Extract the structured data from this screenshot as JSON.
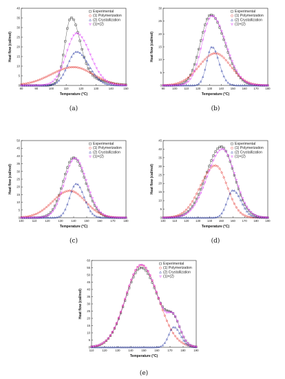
{
  "chart_data": [
    {
      "type": "scatter",
      "caption": "(a)",
      "xlabel": "Temperature (°C)",
      "ylabel": "Heat flow (cal/mol)",
      "xlim": [
        80,
        150
      ],
      "ylim": [
        0,
        40
      ],
      "xticks": [
        80,
        90,
        100,
        110,
        120,
        130,
        140,
        150
      ],
      "yticks": [
        0,
        5,
        10,
        15,
        20,
        25,
        30,
        35,
        40
      ],
      "legend_position": "top-right",
      "series": [
        {
          "name": "Experimental",
          "color": "#333333",
          "marker": "square",
          "peaks": [
            {
              "mu": 113,
              "a": 31,
              "sl": 4,
              "sr": 6
            },
            {
              "mu": 117,
              "a": 5,
              "sl": 6,
              "sr": 14
            }
          ]
        },
        {
          "name": "(1) Polymerization",
          "color": "#e53935",
          "marker": "circle",
          "peaks": [
            {
              "mu": 115,
              "a": 9.5,
              "sl": 15,
              "sr": 13
            }
          ]
        },
        {
          "name": "(2) Crystallization",
          "color": "#3949ab",
          "marker": "triangle",
          "peaks": [
            {
              "mu": 117,
              "a": 17.5,
              "sl": 6,
              "sr": 8
            }
          ]
        },
        {
          "name": "(1)+(2)",
          "color": "#e040fb",
          "marker": "triangle-down",
          "peaks": [
            {
              "mu": 117,
              "a": 27,
              "sl": 7,
              "sr": 9
            }
          ]
        }
      ]
    },
    {
      "type": "scatter",
      "caption": "(b)",
      "xlabel": "Temperature (°C)",
      "ylabel": "Heat flow (cal/mol)",
      "xlim": [
        90,
        180
      ],
      "ylim": [
        0,
        30
      ],
      "xticks": [
        90,
        100,
        110,
        120,
        130,
        140,
        150,
        160,
        170,
        180
      ],
      "yticks": [
        0,
        5,
        10,
        15,
        20,
        25,
        30
      ],
      "legend_position": "top-right",
      "series": [
        {
          "name": "Experimental",
          "color": "#333333",
          "marker": "square",
          "peaks": [
            {
              "mu": 131,
              "a": 27.5,
              "sl": 9,
              "sr": 12
            }
          ]
        },
        {
          "name": "(1) Polymerization",
          "color": "#e53935",
          "marker": "circle",
          "peaks": [
            {
              "mu": 135,
              "a": 12.5,
              "sl": 14,
              "sr": 13
            }
          ]
        },
        {
          "name": "(2) Crystallization",
          "color": "#3949ab",
          "marker": "triangle",
          "peaks": [
            {
              "mu": 132,
              "a": 15,
              "sl": 4.5,
              "sr": 6
            }
          ]
        },
        {
          "name": "(1)+(2)",
          "color": "#e040fb",
          "marker": "triangle-down",
          "peaks": [
            {
              "mu": 132,
              "a": 27,
              "sl": 8.5,
              "sr": 12
            }
          ]
        }
      ]
    },
    {
      "type": "scatter",
      "caption": "(c)",
      "xlabel": "Temperature (°C)",
      "ylabel": "Heat flow (cal/mol)",
      "xlim": [
        100,
        180
      ],
      "ylim": [
        0,
        50
      ],
      "xticks": [
        100,
        110,
        120,
        130,
        140,
        150,
        160,
        170,
        180
      ],
      "yticks": [
        0,
        5,
        10,
        15,
        20,
        25,
        30,
        35,
        40,
        45,
        50
      ],
      "legend_position": "top-right",
      "series": [
        {
          "name": "Experimental",
          "color": "#333333",
          "marker": "square",
          "peaks": [
            {
              "mu": 140,
              "a": 39,
              "sl": 8,
              "sr": 9
            }
          ]
        },
        {
          "name": "(1) Polymerization",
          "color": "#e53935",
          "marker": "circle",
          "peaks": [
            {
              "mu": 137,
              "a": 17.5,
              "sl": 13,
              "sr": 12
            }
          ]
        },
        {
          "name": "(2) Crystallization",
          "color": "#3949ab",
          "marker": "triangle",
          "peaks": [
            {
              "mu": 142,
              "a": 22,
              "sl": 5,
              "sr": 6
            }
          ]
        },
        {
          "name": "(1)+(2)",
          "color": "#e040fb",
          "marker": "triangle-down",
          "peaks": [
            {
              "mu": 141,
              "a": 38.5,
              "sl": 8,
              "sr": 9
            }
          ]
        }
      ]
    },
    {
      "type": "scatter",
      "caption": "(d)",
      "xlabel": "Temperature (°C)",
      "ylabel": "Heat flow (cal/mol)",
      "xlim": [
        100,
        190
      ],
      "ylim": [
        0,
        45
      ],
      "xticks": [
        100,
        110,
        120,
        130,
        140,
        150,
        160,
        170,
        180,
        190
      ],
      "yticks": [
        0,
        5,
        10,
        15,
        20,
        25,
        30,
        35,
        40,
        45
      ],
      "legend_position": "top-right",
      "series": [
        {
          "name": "Experimental",
          "color": "#333333",
          "marker": "square",
          "peaks": [
            {
              "mu": 150,
              "a": 41.5,
              "sl": 13,
              "sr": 11
            }
          ]
        },
        {
          "name": "(1) Polymerization",
          "color": "#e53935",
          "marker": "circle",
          "peaks": [
            {
              "mu": 145,
              "a": 30.5,
              "sl": 13,
              "sr": 10
            }
          ]
        },
        {
          "name": "(2) Crystallization",
          "color": "#3949ab",
          "marker": "triangle",
          "peaks": [
            {
              "mu": 160,
              "a": 16,
              "sl": 5,
              "sr": 7
            }
          ]
        },
        {
          "name": "(1)+(2)",
          "color": "#e040fb",
          "marker": "triangle-down",
          "peaks": [
            {
              "mu": 151,
              "a": 40,
              "sl": 13,
              "sr": 11
            }
          ]
        }
      ]
    },
    {
      "type": "scatter",
      "caption": "(e)",
      "xlabel": "Temperature (°C)",
      "ylabel": "Heat flow (cal/mol)",
      "xlim": [
        110,
        190
      ],
      "ylim": [
        0,
        60
      ],
      "xticks": [
        110,
        120,
        130,
        140,
        150,
        160,
        170,
        180,
        190
      ],
      "yticks": [
        0,
        5,
        10,
        15,
        20,
        25,
        30,
        35,
        40,
        45,
        50,
        55,
        60
      ],
      "legend_position": "top-right",
      "series": [
        {
          "name": "Experimental",
          "color": "#333333",
          "marker": "square",
          "peaks": [
            {
              "mu": 148,
              "a": 55,
              "sl": 12,
              "sr": 13
            },
            {
              "mu": 173,
              "a": 14,
              "sl": 5,
              "sr": 5
            }
          ]
        },
        {
          "name": "(1) Polymerization",
          "color": "#e53935",
          "marker": "circle",
          "peaks": [
            {
              "mu": 148,
              "a": 57,
              "sl": 12,
              "sr": 13
            }
          ]
        },
        {
          "name": "(2) Crystallization",
          "color": "#3949ab",
          "marker": "triangle",
          "peaks": [
            {
              "mu": 173,
              "a": 14,
              "sl": 4,
              "sr": 5
            }
          ]
        },
        {
          "name": "(1)+(2)",
          "color": "#e040fb",
          "marker": "triangle-down",
          "peaks": [
            {
              "mu": 148,
              "a": 57,
              "sl": 12,
              "sr": 13
            },
            {
              "mu": 173,
              "a": 14,
              "sl": 4,
              "sr": 5
            }
          ]
        }
      ]
    }
  ]
}
